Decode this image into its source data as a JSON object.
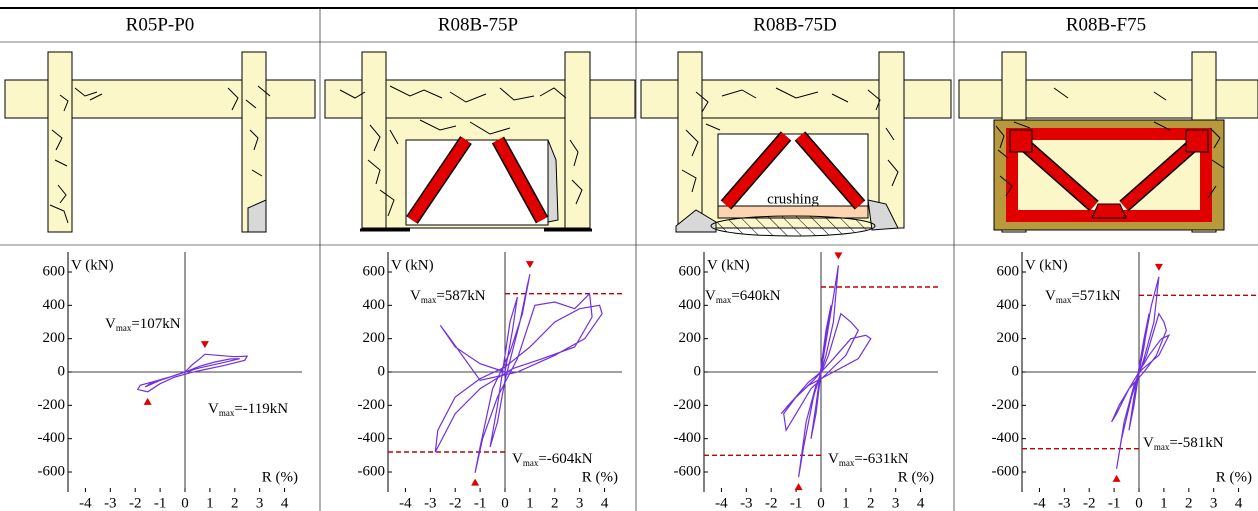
{
  "columns": [
    {
      "name": "R05P-P0"
    },
    {
      "name": "R08B-75P"
    },
    {
      "name": "R08B-75D",
      "annotation": "crushing"
    },
    {
      "name": "R08B-F75"
    }
  ],
  "chart_data": [
    {
      "type": "line",
      "ylabel": "V (kN)",
      "xlabel": "R (%)",
      "color": "#7030e0",
      "x": [
        0,
        0.3,
        0.6,
        0.8,
        1.3,
        2.0,
        2.5,
        2.4,
        1.6,
        0.8,
        0.2,
        -0.4,
        -1.0,
        -1.5,
        -1.9,
        -1.8,
        -1.2,
        -0.5,
        0,
        0.6,
        1.2,
        1.8,
        2.2,
        1.5,
        0.6,
        -0.2,
        -1.0,
        -1.6,
        -1.4,
        -0.6,
        0
      ],
      "values": [
        0,
        45,
        80,
        107,
        100,
        92,
        95,
        70,
        40,
        15,
        -5,
        -30,
        -70,
        -119,
        -105,
        -80,
        -55,
        -25,
        0,
        35,
        60,
        78,
        80,
        55,
        25,
        -10,
        -50,
        -90,
        -70,
        -30,
        0
      ],
      "xlim": [
        -4.7,
        4.7
      ],
      "ylim": [
        -720,
        720
      ],
      "xticks": [
        -4,
        -3,
        -2,
        -1,
        0,
        1,
        2,
        3,
        4
      ],
      "yticks": [
        -600,
        -400,
        -200,
        0,
        200,
        400,
        600
      ],
      "peaks": {
        "x": [
          0.8,
          -1.5
        ],
        "values": [
          107,
          -119
        ],
        "color": "#e00000"
      },
      "vmax_labels": [
        {
          "symbol": "V",
          "subscript": "max",
          "text": "=107kN"
        },
        {
          "symbol": "V",
          "subscript": "max",
          "text": "=-119kN"
        }
      ]
    },
    {
      "type": "line",
      "ylabel": "V (kN)",
      "xlabel": "R (%)",
      "color": "#7030e0",
      "x": [
        0,
        0.3,
        0.5,
        0.2,
        -0.3,
        -0.6,
        -0.3,
        0,
        0.6,
        0.9,
        1.0,
        0.7,
        0.2,
        -0.5,
        -1.0,
        -1.2,
        -0.9,
        -0.3,
        0.5,
        1.2,
        2.0,
        2.8,
        3.4,
        3.5,
        2.8,
        1.5,
        0.3,
        -1.0,
        -2.0,
        -2.8,
        -2.7,
        -2.0,
        -1.0,
        0,
        1.0,
        2.0,
        3.0,
        3.8,
        3.9,
        3.2,
        2.0,
        0.5,
        -1.0,
        -2.2,
        -2.6,
        -2.0,
        -1.0,
        0
      ],
      "values": [
        0,
        250,
        450,
        300,
        -200,
        -450,
        -300,
        -50,
        300,
        520,
        587,
        350,
        120,
        -100,
        -450,
        -604,
        -400,
        -150,
        80,
        400,
        420,
        380,
        470,
        330,
        150,
        80,
        20,
        -100,
        -250,
        -480,
        -350,
        -150,
        -40,
        30,
        150,
        300,
        380,
        400,
        350,
        200,
        100,
        0,
        -50,
        200,
        280,
        150,
        50,
        0
      ],
      "xlim": [
        -4.7,
        4.7
      ],
      "ylim": [
        -720,
        720
      ],
      "xticks": [
        -4,
        -3,
        -2,
        -1,
        0,
        1,
        2,
        3,
        4
      ],
      "yticks": [
        -600,
        -400,
        -200,
        0,
        200,
        400,
        600
      ],
      "peaks": {
        "x": [
          1.0,
          -1.2
        ],
        "values": [
          587,
          -604
        ],
        "color": "#e00000"
      },
      "vmax_labels": [
        {
          "symbol": "V",
          "subscript": "max",
          "text": "=587kN"
        },
        {
          "symbol": "V",
          "subscript": "max",
          "text": "=-604kN"
        }
      ],
      "ref_lines": {
        "values": [
          470,
          -480
        ],
        "color": "#c00000"
      }
    },
    {
      "type": "line",
      "ylabel": "V (kN)",
      "xlabel": "R (%)",
      "color": "#7030e0",
      "x": [
        0,
        0.2,
        0.4,
        0.2,
        -0.2,
        -0.4,
        -0.2,
        0,
        0.5,
        0.7,
        0.5,
        0.2,
        -0.3,
        -0.7,
        -0.9,
        -0.6,
        -0.2,
        0.3,
        0.8,
        1.2,
        1.5,
        1.0,
        0.3,
        -0.4,
        -1.0,
        -1.4,
        -1.5,
        -1.0,
        -0.3,
        0.5,
        1.2,
        1.8,
        2.0,
        1.5,
        0.5,
        -0.5,
        -1.2,
        -1.6,
        -1.3,
        -0.5,
        0
      ],
      "values": [
        0,
        200,
        400,
        250,
        -200,
        -400,
        -250,
        0,
        450,
        640,
        300,
        100,
        -150,
        -450,
        -631,
        -300,
        -80,
        100,
        350,
        300,
        250,
        100,
        0,
        -100,
        -250,
        -350,
        -250,
        -150,
        -50,
        80,
        200,
        220,
        200,
        80,
        0,
        -80,
        -180,
        -250,
        -200,
        -60,
        0
      ],
      "xlim": [
        -4.7,
        4.7
      ],
      "ylim": [
        -720,
        720
      ],
      "xticks": [
        -4,
        -3,
        -2,
        -1,
        0,
        1,
        2,
        3,
        4
      ],
      "yticks": [
        -600,
        -400,
        -200,
        0,
        200,
        400,
        600
      ],
      "peaks": {
        "x": [
          0.7,
          -0.9
        ],
        "values": [
          640,
          -631
        ],
        "color": "#e00000"
      },
      "vmax_labels": [
        {
          "symbol": "V",
          "subscript": "max",
          "text": "=640kN"
        },
        {
          "symbol": "V",
          "subscript": "max",
          "text": "=-631kN"
        }
      ],
      "ref_lines": {
        "values": [
          510,
          -500
        ],
        "color": "#c00000"
      }
    },
    {
      "type": "line",
      "ylabel": "V (kN)",
      "xlabel": "R (%)",
      "color": "#7030e0",
      "x": [
        0,
        0.2,
        0.4,
        0.2,
        -0.2,
        -0.4,
        -0.2,
        0,
        0.5,
        0.8,
        0.6,
        0.2,
        -0.3,
        -0.7,
        -0.9,
        -0.6,
        -0.2,
        0.3,
        0.8,
        1.0,
        1.1,
        0.7,
        0.2,
        -0.4,
        -0.9,
        -1.1,
        -0.8,
        -0.2,
        0.4,
        0.9,
        1.2,
        0.8,
        0
      ],
      "values": [
        0,
        150,
        350,
        200,
        -150,
        -350,
        -200,
        0,
        400,
        571,
        300,
        80,
        -150,
        -400,
        -581,
        -300,
        -80,
        100,
        350,
        300,
        250,
        100,
        0,
        -100,
        -250,
        -300,
        -200,
        -50,
        100,
        200,
        220,
        100,
        0
      ],
      "xlim": [
        -4.7,
        4.7
      ],
      "ylim": [
        -720,
        720
      ],
      "xticks": [
        -4,
        -3,
        -2,
        -1,
        0,
        1,
        2,
        3,
        4
      ],
      "yticks": [
        -600,
        -400,
        -200,
        0,
        200,
        400,
        600
      ],
      "peaks": {
        "x": [
          0.8,
          -0.9
        ],
        "values": [
          571,
          -581
        ],
        "color": "#e00000"
      },
      "vmax_labels": [
        {
          "symbol": "V",
          "subscript": "max",
          "text": "=571kN"
        },
        {
          "symbol": "V",
          "subscript": "max",
          "text": "=-581kN"
        }
      ],
      "ref_lines": {
        "values": [
          460,
          -460
        ],
        "color": "#c00000"
      }
    }
  ]
}
